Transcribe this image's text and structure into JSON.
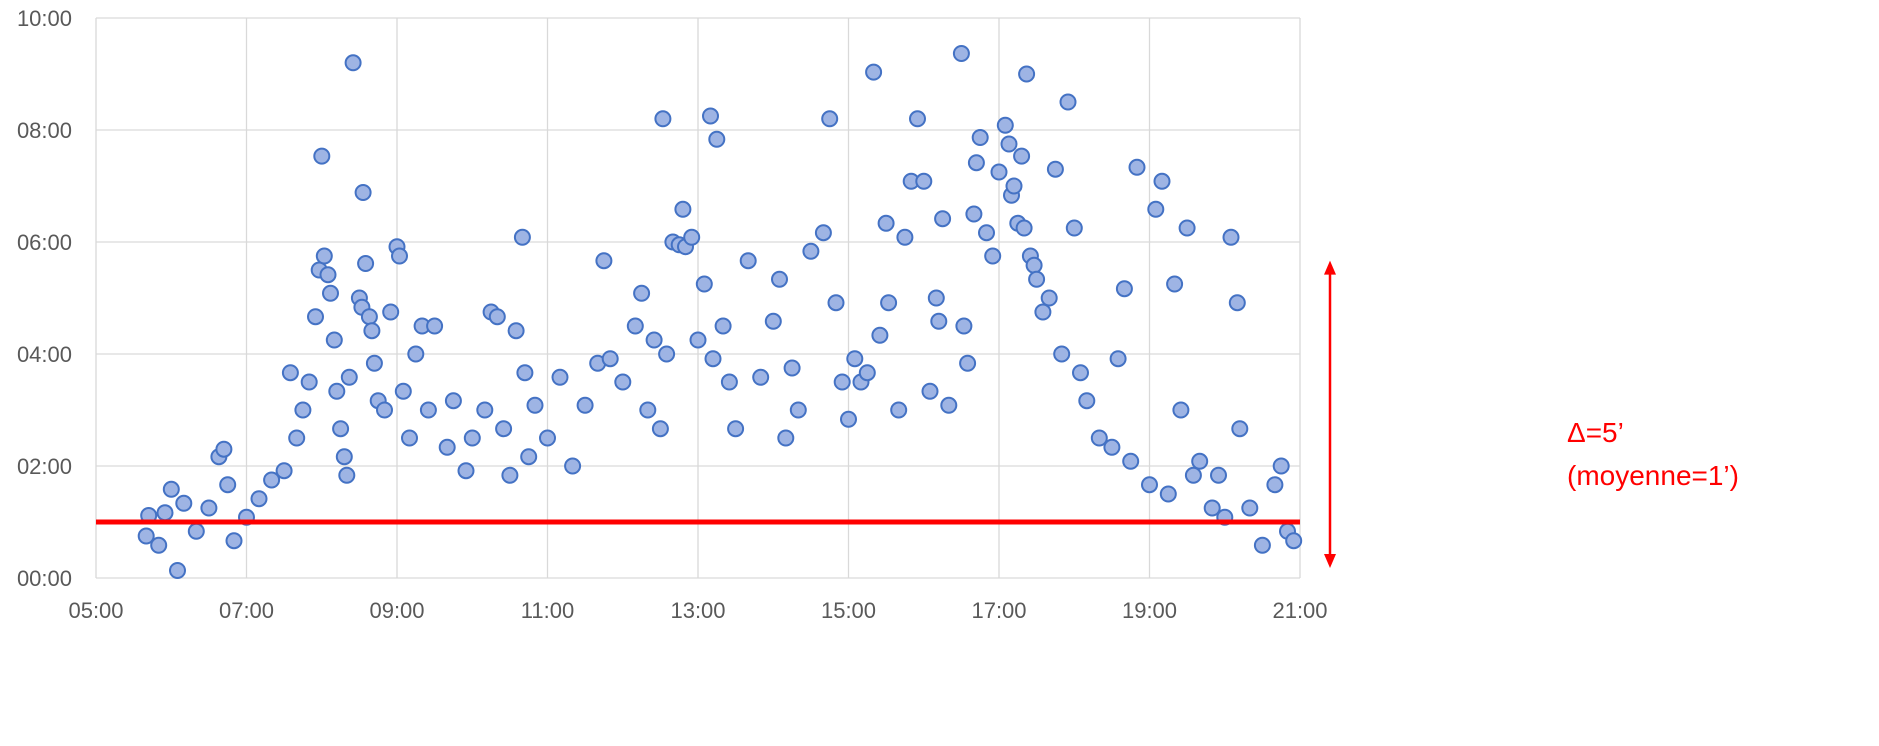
{
  "chart_data": {
    "type": "scatter",
    "title": "",
    "xlabel": "",
    "ylabel": "",
    "x_unit": "time of day (hh:mm)",
    "y_unit": "duration (mm:ss)",
    "xlim": [
      "05:00",
      "21:00"
    ],
    "ylim": [
      "00:00",
      "10:00"
    ],
    "x_ticks": [
      "05:00",
      "07:00",
      "09:00",
      "11:00",
      "13:00",
      "15:00",
      "17:00",
      "19:00",
      "21:00"
    ],
    "y_ticks": [
      "00:00",
      "02:00",
      "04:00",
      "06:00",
      "08:00",
      "10:00"
    ],
    "grid": true,
    "legend": "none",
    "colors": {
      "marker_fill": "#9eb4e4",
      "marker_stroke": "#4472c4",
      "mean_line": "#ff0000",
      "annotation": "#ff0000",
      "grid": "#d9d9d9",
      "ticks": "#595959"
    },
    "series": [
      {
        "name": "",
        "points": [
          [
            "05:40",
            "00:45"
          ],
          [
            "05:42",
            "01:07"
          ],
          [
            "05:50",
            "00:35"
          ],
          [
            "05:55",
            "01:10"
          ],
          [
            "06:00",
            "01:35"
          ],
          [
            "06:05",
            "00:08"
          ],
          [
            "06:10",
            "01:20"
          ],
          [
            "06:20",
            "00:50"
          ],
          [
            "06:30",
            "01:15"
          ],
          [
            "06:38",
            "02:10"
          ],
          [
            "06:42",
            "02:18"
          ],
          [
            "06:45",
            "01:40"
          ],
          [
            "06:50",
            "00:40"
          ],
          [
            "07:00",
            "01:05"
          ],
          [
            "07:10",
            "01:25"
          ],
          [
            "07:20",
            "01:45"
          ],
          [
            "07:30",
            "01:55"
          ],
          [
            "07:35",
            "03:40"
          ],
          [
            "07:40",
            "02:30"
          ],
          [
            "07:45",
            "03:00"
          ],
          [
            "07:50",
            "03:30"
          ],
          [
            "07:55",
            "04:40"
          ],
          [
            "07:58",
            "05:30"
          ],
          [
            "08:00",
            "07:32"
          ],
          [
            "08:02",
            "05:45"
          ],
          [
            "08:05",
            "05:25"
          ],
          [
            "08:07",
            "05:05"
          ],
          [
            "08:10",
            "04:15"
          ],
          [
            "08:12",
            "03:20"
          ],
          [
            "08:15",
            "02:40"
          ],
          [
            "08:18",
            "02:10"
          ],
          [
            "08:20",
            "01:50"
          ],
          [
            "08:22",
            "03:35"
          ],
          [
            "08:25",
            "09:12"
          ],
          [
            "08:30",
            "05:00"
          ],
          [
            "08:32",
            "04:50"
          ],
          [
            "08:33",
            "06:53"
          ],
          [
            "08:35",
            "05:37"
          ],
          [
            "08:38",
            "04:40"
          ],
          [
            "08:40",
            "04:25"
          ],
          [
            "08:42",
            "03:50"
          ],
          [
            "08:45",
            "03:10"
          ],
          [
            "08:50",
            "03:00"
          ],
          [
            "08:55",
            "04:45"
          ],
          [
            "09:00",
            "05:55"
          ],
          [
            "09:02",
            "05:45"
          ],
          [
            "09:05",
            "03:20"
          ],
          [
            "09:10",
            "02:30"
          ],
          [
            "09:15",
            "04:00"
          ],
          [
            "09:20",
            "04:30"
          ],
          [
            "09:25",
            "03:00"
          ],
          [
            "09:30",
            "04:30"
          ],
          [
            "09:40",
            "02:20"
          ],
          [
            "09:45",
            "03:10"
          ],
          [
            "09:55",
            "01:55"
          ],
          [
            "10:00",
            "02:30"
          ],
          [
            "10:10",
            "03:00"
          ],
          [
            "10:15",
            "04:45"
          ],
          [
            "10:20",
            "04:40"
          ],
          [
            "10:25",
            "02:40"
          ],
          [
            "10:30",
            "01:50"
          ],
          [
            "10:35",
            "04:25"
          ],
          [
            "10:40",
            "06:05"
          ],
          [
            "10:42",
            "03:40"
          ],
          [
            "10:45",
            "02:10"
          ],
          [
            "10:50",
            "03:05"
          ],
          [
            "11:00",
            "02:30"
          ],
          [
            "11:10",
            "03:35"
          ],
          [
            "11:20",
            "02:00"
          ],
          [
            "11:30",
            "03:05"
          ],
          [
            "11:40",
            "03:50"
          ],
          [
            "11:45",
            "05:40"
          ],
          [
            "11:50",
            "03:55"
          ],
          [
            "12:00",
            "03:30"
          ],
          [
            "12:10",
            "04:30"
          ],
          [
            "12:15",
            "05:05"
          ],
          [
            "12:20",
            "03:00"
          ],
          [
            "12:25",
            "04:15"
          ],
          [
            "12:30",
            "02:40"
          ],
          [
            "12:32",
            "08:12"
          ],
          [
            "12:35",
            "04:00"
          ],
          [
            "12:40",
            "06:00"
          ],
          [
            "12:45",
            "05:57"
          ],
          [
            "12:48",
            "06:35"
          ],
          [
            "12:50",
            "05:55"
          ],
          [
            "12:55",
            "06:05"
          ],
          [
            "13:00",
            "04:15"
          ],
          [
            "13:05",
            "05:15"
          ],
          [
            "13:10",
            "08:15"
          ],
          [
            "13:12",
            "03:55"
          ],
          [
            "13:15",
            "07:50"
          ],
          [
            "13:20",
            "04:30"
          ],
          [
            "13:25",
            "03:30"
          ],
          [
            "13:30",
            "02:40"
          ],
          [
            "13:40",
            "05:40"
          ],
          [
            "13:50",
            "03:35"
          ],
          [
            "14:00",
            "04:35"
          ],
          [
            "14:05",
            "05:20"
          ],
          [
            "14:10",
            "02:30"
          ],
          [
            "14:15",
            "03:45"
          ],
          [
            "14:20",
            "03:00"
          ],
          [
            "14:30",
            "05:50"
          ],
          [
            "14:40",
            "06:10"
          ],
          [
            "14:45",
            "08:12"
          ],
          [
            "14:50",
            "04:55"
          ],
          [
            "14:55",
            "03:30"
          ],
          [
            "15:00",
            "02:50"
          ],
          [
            "15:05",
            "03:55"
          ],
          [
            "15:10",
            "03:30"
          ],
          [
            "15:15",
            "03:40"
          ],
          [
            "15:20",
            "09:02"
          ],
          [
            "15:25",
            "04:20"
          ],
          [
            "15:30",
            "06:20"
          ],
          [
            "15:32",
            "04:55"
          ],
          [
            "15:40",
            "03:00"
          ],
          [
            "15:45",
            "06:05"
          ],
          [
            "15:50",
            "07:05"
          ],
          [
            "15:55",
            "08:12"
          ],
          [
            "16:00",
            "07:05"
          ],
          [
            "16:05",
            "03:20"
          ],
          [
            "16:10",
            "05:00"
          ],
          [
            "16:12",
            "04:35"
          ],
          [
            "16:15",
            "06:25"
          ],
          [
            "16:20",
            "03:05"
          ],
          [
            "16:30",
            "09:22"
          ],
          [
            "16:32",
            "04:30"
          ],
          [
            "16:35",
            "03:50"
          ],
          [
            "16:40",
            "06:30"
          ],
          [
            "16:42",
            "07:25"
          ],
          [
            "16:45",
            "07:52"
          ],
          [
            "16:50",
            "06:10"
          ],
          [
            "16:55",
            "05:45"
          ],
          [
            "17:00",
            "07:15"
          ],
          [
            "17:05",
            "08:05"
          ],
          [
            "17:08",
            "07:45"
          ],
          [
            "17:10",
            "06:50"
          ],
          [
            "17:12",
            "07:00"
          ],
          [
            "17:15",
            "06:20"
          ],
          [
            "17:18",
            "07:32"
          ],
          [
            "17:20",
            "06:15"
          ],
          [
            "17:22",
            "09:00"
          ],
          [
            "17:25",
            "05:45"
          ],
          [
            "17:28",
            "05:35"
          ],
          [
            "17:30",
            "05:20"
          ],
          [
            "17:35",
            "04:45"
          ],
          [
            "17:40",
            "05:00"
          ],
          [
            "17:45",
            "07:18"
          ],
          [
            "17:50",
            "04:00"
          ],
          [
            "17:55",
            "08:30"
          ],
          [
            "18:00",
            "06:15"
          ],
          [
            "18:05",
            "03:40"
          ],
          [
            "18:10",
            "03:10"
          ],
          [
            "18:20",
            "02:30"
          ],
          [
            "18:30",
            "02:20"
          ],
          [
            "18:35",
            "03:55"
          ],
          [
            "18:40",
            "05:10"
          ],
          [
            "18:45",
            "02:05"
          ],
          [
            "18:50",
            "07:20"
          ],
          [
            "19:00",
            "01:40"
          ],
          [
            "19:05",
            "06:35"
          ],
          [
            "19:10",
            "07:05"
          ],
          [
            "19:15",
            "01:30"
          ],
          [
            "19:20",
            "05:15"
          ],
          [
            "19:25",
            "03:00"
          ],
          [
            "19:30",
            "06:15"
          ],
          [
            "19:35",
            "01:50"
          ],
          [
            "19:40",
            "02:05"
          ],
          [
            "19:50",
            "01:15"
          ],
          [
            "19:55",
            "01:50"
          ],
          [
            "20:00",
            "01:05"
          ],
          [
            "20:05",
            "06:05"
          ],
          [
            "20:10",
            "04:55"
          ],
          [
            "20:12",
            "02:40"
          ],
          [
            "20:20",
            "01:15"
          ],
          [
            "20:30",
            "00:35"
          ],
          [
            "20:40",
            "01:40"
          ],
          [
            "20:45",
            "02:00"
          ],
          [
            "20:50",
            "00:50"
          ],
          [
            "20:55",
            "00:40"
          ]
        ]
      }
    ],
    "mean_line": {
      "y": "01:00"
    },
    "annotation": {
      "line1": "Δ=5’",
      "line2": "(moyenne=1’)",
      "y_from": "00:00",
      "y_to": "05:40"
    }
  }
}
